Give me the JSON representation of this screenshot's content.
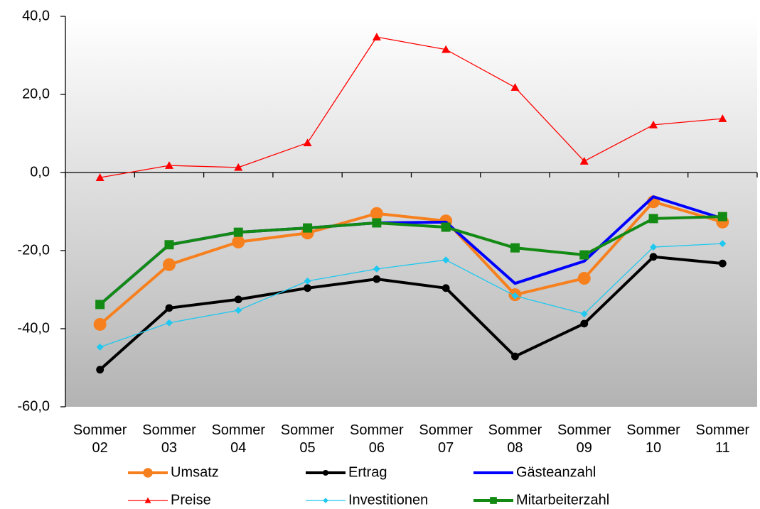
{
  "chart_data": {
    "type": "line",
    "categories": [
      "Sommer 02",
      "Sommer 03",
      "Sommer 04",
      "Sommer 05",
      "Sommer 06",
      "Sommer 07",
      "Sommer 08",
      "Sommer 09",
      "Sommer 10",
      "Sommer 11"
    ],
    "series": [
      {
        "name": "Umsatz",
        "color": "#f7801e",
        "marker": "circle",
        "values": [
          -38.9,
          -23.6,
          -17.8,
          -15.5,
          -10.5,
          -12.4,
          -31.3,
          -27.1,
          -7.5,
          -12.7
        ]
      },
      {
        "name": "Ertrag",
        "color": "#000000",
        "marker": "circle",
        "values": [
          -50.5,
          -34.7,
          -32.5,
          -29.6,
          -27.3,
          -29.6,
          -47.1,
          -38.7,
          -21.6,
          -23.3
        ]
      },
      {
        "name": "Gästeanzahl",
        "color": "#0000ff",
        "marker": "none",
        "values": [
          -33.8,
          -18.5,
          -15.3,
          -14.2,
          -12.9,
          -12.7,
          -28.4,
          -22.7,
          -6.2,
          -11.8
        ]
      },
      {
        "name": "Preise",
        "color": "#ff0000",
        "marker": "triangle",
        "values": [
          -1.3,
          1.8,
          1.3,
          7.6,
          34.7,
          31.5,
          21.8,
          2.9,
          12.2,
          13.8
        ]
      },
      {
        "name": "Investitionen",
        "color": "#1ec8f0",
        "marker": "diamond",
        "values": [
          -44.7,
          -38.5,
          -35.3,
          -27.8,
          -24.7,
          -22.4,
          -31.6,
          -36.2,
          -19.1,
          -18.2
        ]
      },
      {
        "name": "Mitarbeiterzahl",
        "color": "#138a13",
        "marker": "square",
        "values": [
          -33.8,
          -18.5,
          -15.3,
          -14.2,
          -12.9,
          -14.0,
          -19.3,
          -21.1,
          -11.8,
          -11.3
        ]
      }
    ],
    "ylim": [
      -60,
      40
    ],
    "yticks": [
      {
        "value": -60,
        "label": "-60,0"
      },
      {
        "value": -40,
        "label": "-40,0"
      },
      {
        "value": -20,
        "label": "-20,0"
      },
      {
        "value": 0,
        "label": "0,0"
      },
      {
        "value": 20,
        "label": "20,0"
      },
      {
        "value": 40,
        "label": "40,0"
      }
    ],
    "grid": false,
    "legend": "bottom"
  }
}
